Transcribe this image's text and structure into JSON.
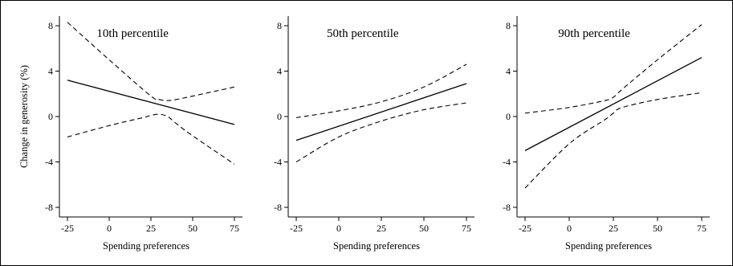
{
  "chart_data": [
    {
      "type": "line",
      "title": "10th percentile",
      "xlabel": "Spending preferences",
      "ylabel": "Change in generosity (%)",
      "xlim": [
        -25,
        75
      ],
      "ylim": [
        -8,
        8
      ],
      "xticks": [
        "-25",
        "0",
        "25",
        "50",
        "75"
      ],
      "yticks": [
        "8",
        "4",
        "0",
        "-4",
        "-8"
      ],
      "grid": false,
      "series": [
        {
          "style": "solid",
          "x": [
            -25,
            75
          ],
          "y": [
            3.2,
            -0.7
          ]
        },
        {
          "style": "dashed",
          "x": [
            -25,
            0,
            25,
            30,
            35,
            40,
            50,
            75
          ],
          "y": [
            8.3,
            5.0,
            1.8,
            1.5,
            1.4,
            1.5,
            1.8,
            2.6
          ]
        },
        {
          "style": "dashed",
          "x": [
            -25,
            0,
            20,
            25,
            30,
            35,
            40,
            50,
            75
          ],
          "y": [
            -1.8,
            -0.8,
            -0.1,
            0.1,
            0.2,
            0.0,
            -0.6,
            -1.7,
            -4.2
          ]
        }
      ]
    },
    {
      "type": "line",
      "title": "50th percentile",
      "xlabel": "Spending preferences",
      "ylabel": "",
      "xlim": [
        -25,
        75
      ],
      "ylim": [
        -8,
        8
      ],
      "xticks": [
        "-25",
        "0",
        "25",
        "50",
        "75"
      ],
      "yticks": [
        "8",
        "4",
        "0",
        "-4",
        "-8"
      ],
      "grid": false,
      "series": [
        {
          "style": "solid",
          "x": [
            -25,
            75
          ],
          "y": [
            -2.1,
            2.9
          ]
        },
        {
          "style": "dashed",
          "x": [
            -25,
            0,
            25,
            50,
            75
          ],
          "y": [
            -0.1,
            0.5,
            1.3,
            2.6,
            4.6
          ]
        },
        {
          "style": "dashed",
          "x": [
            -25,
            0,
            25,
            50,
            75
          ],
          "y": [
            -4.0,
            -1.8,
            -0.4,
            0.6,
            1.2
          ]
        }
      ]
    },
    {
      "type": "line",
      "title": "90th percentile",
      "xlabel": "Spending preferences",
      "ylabel": "",
      "xlim": [
        -25,
        75
      ],
      "ylim": [
        -8,
        8
      ],
      "xticks": [
        "-25",
        "0",
        "25",
        "50",
        "75"
      ],
      "yticks": [
        "8",
        "4",
        "0",
        "-4",
        "-8"
      ],
      "grid": false,
      "series": [
        {
          "style": "solid",
          "x": [
            -25,
            75
          ],
          "y": [
            -3.0,
            5.2
          ]
        },
        {
          "style": "dashed",
          "x": [
            -25,
            0,
            20,
            25,
            30,
            50,
            75
          ],
          "y": [
            0.3,
            0.8,
            1.4,
            1.7,
            2.4,
            5.0,
            8.1
          ]
        },
        {
          "style": "dashed",
          "x": [
            -25,
            0,
            20,
            25,
            30,
            50,
            75
          ],
          "y": [
            -6.3,
            -2.4,
            -0.3,
            0.3,
            0.8,
            1.5,
            2.1
          ]
        }
      ]
    }
  ]
}
